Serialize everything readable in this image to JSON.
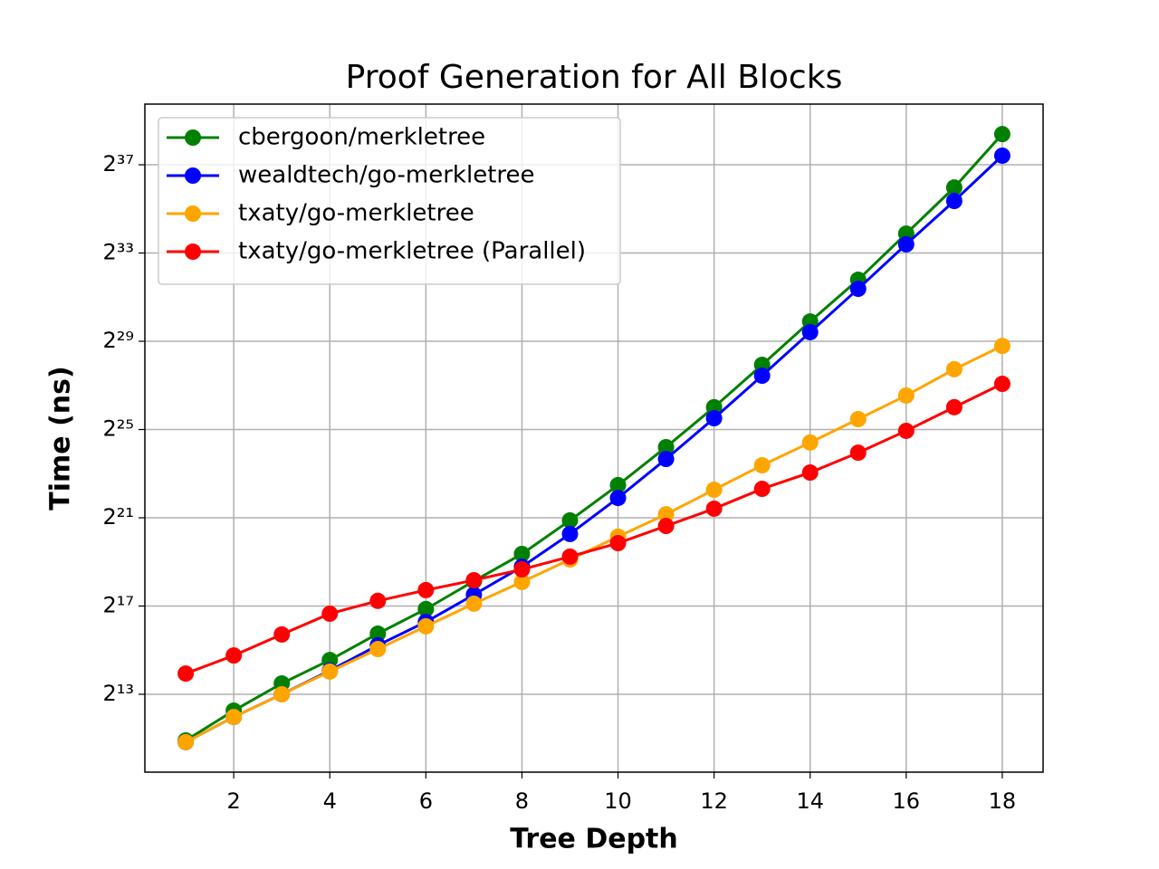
{
  "chart_data": {
    "type": "line",
    "title": "Proof Generation for All Blocks",
    "x_label": "Tree Depth",
    "y_label": "Time (ns)",
    "x": [
      1,
      2,
      3,
      4,
      5,
      6,
      7,
      8,
      9,
      10,
      11,
      12,
      13,
      14,
      15,
      16,
      17,
      18
    ],
    "xlim": [
      0.15,
      18.85
    ],
    "xticks": [
      2,
      4,
      6,
      8,
      10,
      12,
      14,
      16,
      18
    ],
    "ylim": [
      709,
      925000000000
    ],
    "yscale": "log2",
    "yticks": [
      {
        "value": 8192,
        "label": "2¹³"
      },
      {
        "value": 131072,
        "label": "2¹⁷"
      },
      {
        "value": 2097152,
        "label": "2²¹"
      },
      {
        "value": 33554432,
        "label": "2²⁵"
      },
      {
        "value": 536870912,
        "label": "2²⁹"
      },
      {
        "value": 8589934592,
        "label": "2³³"
      },
      {
        "value": 137438953472,
        "label": "2³⁷"
      }
    ],
    "grid": true,
    "legend": "upper left",
    "series": [
      {
        "name": "cbergoon/merkletree",
        "color": "#008000",
        "values": [
          1920,
          4900,
          11500,
          24000,
          55000,
          119000,
          287000,
          673000,
          1930000,
          5850000,
          19300000,
          67600000,
          256000000,
          1000000000,
          3710000000,
          15800000000,
          67300000000,
          360000000000
        ]
      },
      {
        "name": "wealdtech/go-merkletree",
        "color": "#0000ff",
        "values": [
          1820,
          4010,
          8192,
          17200,
          38200,
          79600,
          187000,
          450000,
          1260000,
          3910000,
          13300000,
          47800000,
          182000000,
          714000000,
          2790000000,
          11300000000,
          44100000000,
          183000000000
        ]
      },
      {
        "name": "txaty/go-merkletree",
        "color": "#ffa500",
        "values": [
          1820,
          4010,
          8192,
          16700,
          33900,
          69300,
          141000,
          279000,
          566000,
          1160000,
          2340000,
          5060000,
          10900000,
          22300000,
          46500000,
          97600000,
          223000000,
          464000000
        ]
      },
      {
        "name": "txaty/go-merkletree (Parallel)",
        "color": "#ff0000",
        "values": [
          15700,
          27700,
          53600,
          103000,
          154000,
          216000,
          295000,
          414000,
          619000,
          945000,
          1620000,
          2790000,
          5200000,
          8680000,
          16200000,
          32200000,
          67600000,
          141000000
        ]
      }
    ]
  }
}
